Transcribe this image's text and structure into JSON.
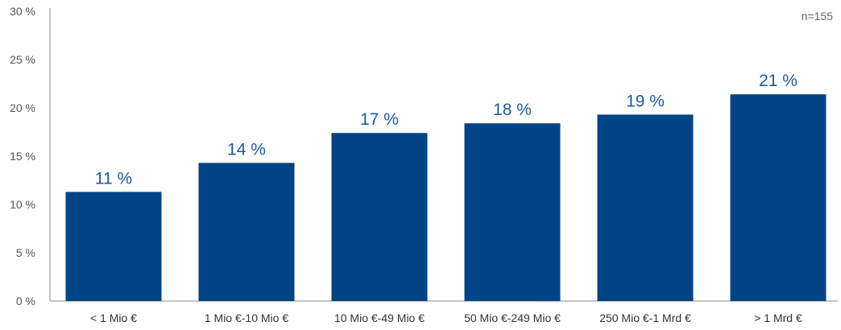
{
  "chart_data": {
    "type": "bar",
    "categories": [
      "< 1 Mio €",
      "1 Mio €-10 Mio €",
      "10 Mio €-49 Mio €",
      "50 Mio €-249 Mio €",
      "250 Mio €-1 Mrd €",
      "> 1 Mrd €"
    ],
    "values": [
      11.3,
      14.3,
      17.4,
      18.4,
      19.3,
      21.4
    ],
    "data_labels": [
      "11 %",
      "14 %",
      "17 %",
      "18 %",
      "19 %",
      "21 %"
    ],
    "ylim": [
      0,
      30
    ],
    "yticks": [
      0,
      5,
      10,
      15,
      20,
      25,
      30
    ],
    "ytick_labels": [
      "0 %",
      "5 %",
      "10 %",
      "15 %",
      "20 %",
      "25 %",
      "30 %"
    ],
    "annotation": "n=155",
    "grid": false,
    "legend": "none",
    "bar_color": "#004486",
    "label_color": "#1f5aa0"
  }
}
